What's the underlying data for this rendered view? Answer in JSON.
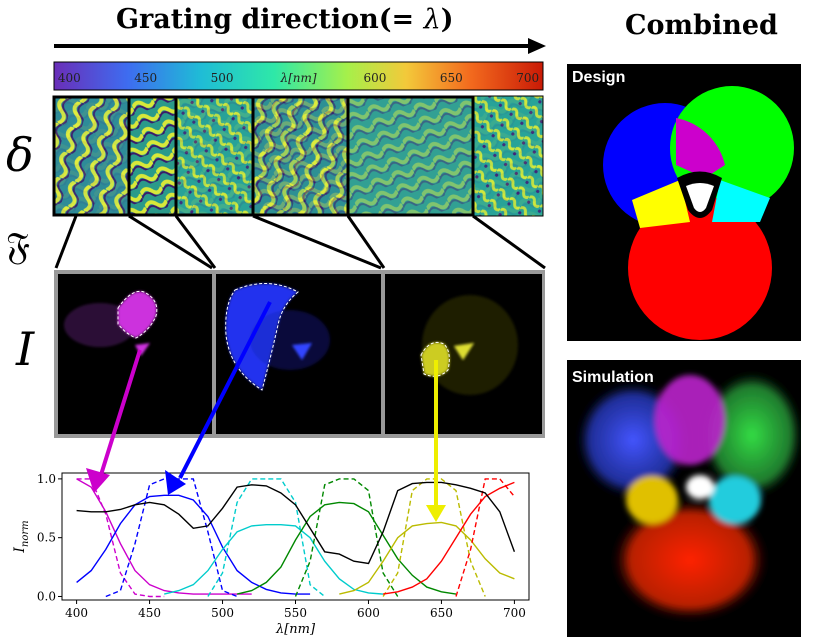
{
  "header": {
    "title": "Grating direction",
    "equals": "(= ",
    "lambda": "λ",
    "close": ")"
  },
  "combined_title": "Combined",
  "colorbar": {
    "ticks": [
      "400",
      "450",
      "500",
      "550",
      "600",
      "650",
      "700"
    ],
    "label_prefix": "λ",
    "label_unit": "[nm]"
  },
  "row_labels": {
    "delta": "δ",
    "fourier": "𝔉",
    "intensity": "I"
  },
  "panels": {
    "design": "Design",
    "simulation": "Simulation"
  },
  "colors": {
    "violet": "#cc00cc",
    "blue": "#0000ff",
    "cyan": "#00cccc",
    "green": "#008800",
    "yellow": "#bbbb00",
    "red": "#ff0000",
    "black": "#000000"
  },
  "chart_data": {
    "type": "line",
    "xlabel": "λ[nm]",
    "ylabel": "I_norm",
    "xlim": [
      390,
      710
    ],
    "ylim": [
      -0.03,
      1.05
    ],
    "xticks": [
      400,
      450,
      500,
      550,
      600,
      650,
      700
    ],
    "yticks": [
      0.0,
      0.5,
      1.0
    ],
    "ytick_labels": [
      "0.0",
      "0.5",
      "1.0"
    ],
    "series": [
      {
        "color": "#cc00cc",
        "style": "solid",
        "x": [
          400,
          410,
          420,
          430,
          440,
          450,
          460,
          470,
          480,
          490,
          500,
          510,
          520
        ],
        "y": [
          1.0,
          0.93,
          0.72,
          0.45,
          0.22,
          0.1,
          0.05,
          0.03,
          0.02,
          0.02,
          0.02,
          0.02,
          0.02
        ]
      },
      {
        "color": "#cc00cc",
        "style": "dashed",
        "x": [
          400,
          410,
          420,
          430,
          440,
          450,
          460
        ],
        "y": [
          1.0,
          1.0,
          0.7,
          0.2,
          0.02,
          0.0,
          0.0
        ]
      },
      {
        "color": "#0000ff",
        "style": "solid",
        "x": [
          400,
          410,
          420,
          430,
          440,
          450,
          460,
          470,
          480,
          490,
          500,
          510,
          520,
          530,
          540,
          550,
          560
        ],
        "y": [
          0.12,
          0.22,
          0.4,
          0.62,
          0.78,
          0.85,
          0.86,
          0.86,
          0.82,
          0.68,
          0.42,
          0.22,
          0.12,
          0.06,
          0.03,
          0.02,
          0.02
        ]
      },
      {
        "color": "#0000ff",
        "style": "dashed",
        "x": [
          420,
          430,
          440,
          450,
          460,
          470,
          480,
          490,
          500,
          510
        ],
        "y": [
          0.0,
          0.05,
          0.45,
          0.95,
          1.0,
          1.0,
          1.0,
          0.55,
          0.05,
          0.0
        ]
      },
      {
        "color": "#00cccc",
        "style": "solid",
        "x": [
          460,
          470,
          480,
          490,
          500,
          510,
          520,
          530,
          540,
          550,
          560,
          570,
          580,
          590,
          600,
          610
        ],
        "y": [
          0.02,
          0.05,
          0.1,
          0.22,
          0.4,
          0.55,
          0.6,
          0.61,
          0.61,
          0.6,
          0.5,
          0.3,
          0.15,
          0.06,
          0.03,
          0.02
        ]
      },
      {
        "color": "#00cccc",
        "style": "dashed",
        "x": [
          490,
          500,
          510,
          520,
          530,
          540,
          550,
          560,
          570
        ],
        "y": [
          0.0,
          0.2,
          0.8,
          1.0,
          1.0,
          1.0,
          0.8,
          0.1,
          0.0
        ]
      },
      {
        "color": "#008800",
        "style": "solid",
        "x": [
          510,
          520,
          530,
          540,
          550,
          560,
          570,
          580,
          590,
          600,
          610,
          620,
          630,
          640,
          650,
          660
        ],
        "y": [
          0.02,
          0.05,
          0.12,
          0.25,
          0.48,
          0.68,
          0.78,
          0.8,
          0.79,
          0.72,
          0.52,
          0.32,
          0.18,
          0.08,
          0.04,
          0.02
        ]
      },
      {
        "color": "#008800",
        "style": "dashed",
        "x": [
          550,
          560,
          570,
          580,
          590,
          600,
          610,
          620
        ],
        "y": [
          0.0,
          0.3,
          0.95,
          1.0,
          1.0,
          0.9,
          0.2,
          0.0
        ]
      },
      {
        "color": "#bbbb00",
        "style": "solid",
        "x": [
          580,
          590,
          600,
          610,
          620,
          630,
          640,
          650,
          660,
          670,
          680,
          690,
          700
        ],
        "y": [
          0.02,
          0.05,
          0.12,
          0.3,
          0.5,
          0.6,
          0.62,
          0.63,
          0.6,
          0.48,
          0.32,
          0.2,
          0.15
        ]
      },
      {
        "color": "#bbbb00",
        "style": "dashed",
        "x": [
          610,
          620,
          630,
          640,
          650,
          660,
          670,
          680
        ],
        "y": [
          0.0,
          0.2,
          0.9,
          1.0,
          1.0,
          0.9,
          0.3,
          0.0
        ]
      },
      {
        "color": "#ff0000",
        "style": "solid",
        "x": [
          610,
          620,
          630,
          640,
          650,
          660,
          670,
          680,
          690,
          700
        ],
        "y": [
          0.02,
          0.04,
          0.08,
          0.15,
          0.3,
          0.5,
          0.7,
          0.85,
          0.92,
          0.97
        ]
      },
      {
        "color": "#ff0000",
        "style": "dashed",
        "x": [
          660,
          670,
          680,
          690,
          700
        ],
        "y": [
          0.0,
          0.4,
          1.0,
          1.0,
          0.85
        ]
      },
      {
        "color": "#000000",
        "style": "solid",
        "x": [
          400,
          410,
          420,
          430,
          440,
          450,
          460,
          470,
          480,
          490,
          500,
          510,
          520,
          530,
          540,
          550,
          560,
          570,
          580,
          590,
          600,
          610,
          620,
          630,
          640,
          650,
          660,
          670,
          680,
          690,
          700
        ],
        "y": [
          0.73,
          0.72,
          0.72,
          0.74,
          0.78,
          0.8,
          0.78,
          0.7,
          0.58,
          0.6,
          0.75,
          0.93,
          0.95,
          0.94,
          0.88,
          0.78,
          0.58,
          0.38,
          0.36,
          0.3,
          0.28,
          0.55,
          0.9,
          0.96,
          0.97,
          0.97,
          0.95,
          0.92,
          0.88,
          0.72,
          0.38
        ]
      }
    ]
  }
}
